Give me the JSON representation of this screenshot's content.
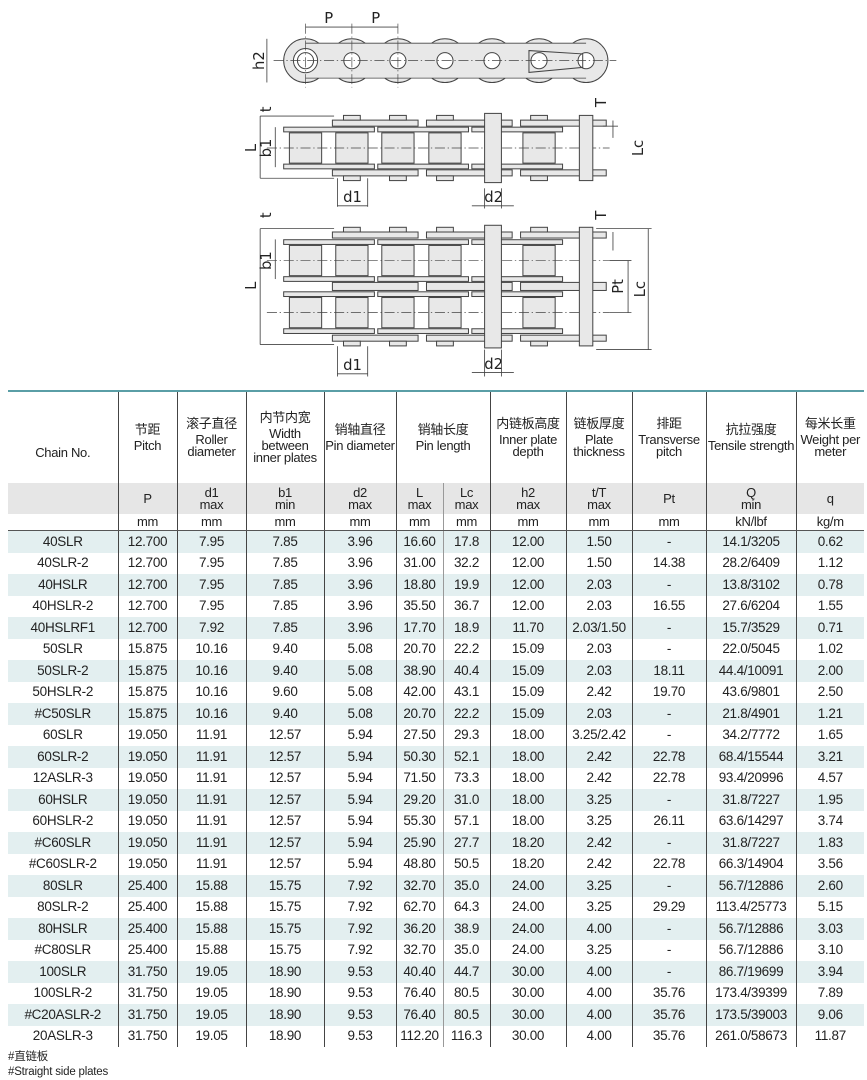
{
  "diagram": {
    "labels": {
      "P": "P",
      "h2": "h2",
      "t": "t",
      "T": "T",
      "L": "L",
      "b1": "b1",
      "Lc": "Lc",
      "d1": "d1",
      "d2": "d2",
      "Pt": "Pt"
    },
    "plate_fill": "#e8e8e8",
    "line_color": "#444444"
  },
  "table": {
    "chain_no_header": "Chain No.",
    "columns": [
      {
        "cn": "节距",
        "en": "Pitch",
        "sym": "P",
        "sub": "",
        "unit": "mm"
      },
      {
        "cn": "滚子直径",
        "en": "Roller diameter",
        "sym": "d1",
        "sub": "max",
        "unit": "mm"
      },
      {
        "cn": "内节内宽",
        "en": "Width between inner plates",
        "sym": "b1",
        "sub": "min",
        "unit": "mm"
      },
      {
        "cn": "销轴直径",
        "en": "Pin diameter",
        "sym": "d2",
        "sub": "max",
        "unit": "mm"
      },
      {
        "cn": "销轴长度",
        "en": "Pin length",
        "sym": "L",
        "sub": "max",
        "unit": "mm",
        "sym2": "Lc",
        "sub2": "max",
        "unit2": "mm"
      },
      {
        "cn": "内链板高度",
        "en": "Inner plate depth",
        "sym": "h2",
        "sub": "max",
        "unit": "mm"
      },
      {
        "cn": "链板厚度",
        "en": "Plate thickness",
        "sym": "t/T",
        "sub": "max",
        "unit": "mm"
      },
      {
        "cn": "排距",
        "en": "Transverse pitch",
        "sym": "Pt",
        "sub": "",
        "unit": "mm"
      },
      {
        "cn": "抗拉强度",
        "en": "Tensile strength",
        "sym": "Q",
        "sub": "min",
        "unit": "kN/lbf"
      },
      {
        "cn": "每米长重",
        "en": "Weight per meter",
        "sym": "q",
        "sub": "",
        "unit": "kg/m"
      }
    ],
    "rows": [
      [
        "40SLR",
        "12.700",
        "7.95",
        "7.85",
        "3.96",
        "16.60",
        "17.8",
        "12.00",
        "1.50",
        "-",
        "14.1/3205",
        "0.62"
      ],
      [
        "40SLR-2",
        "12.700",
        "7.95",
        "7.85",
        "3.96",
        "31.00",
        "32.2",
        "12.00",
        "1.50",
        "14.38",
        "28.2/6409",
        "1.12"
      ],
      [
        "40HSLR",
        "12.700",
        "7.95",
        "7.85",
        "3.96",
        "18.80",
        "19.9",
        "12.00",
        "2.03",
        "-",
        "13.8/3102",
        "0.78"
      ],
      [
        "40HSLR-2",
        "12.700",
        "7.95",
        "7.85",
        "3.96",
        "35.50",
        "36.7",
        "12.00",
        "2.03",
        "16.55",
        "27.6/6204",
        "1.55"
      ],
      [
        "40HSLRF1",
        "12.700",
        "7.92",
        "7.85",
        "3.96",
        "17.70",
        "18.9",
        "11.70",
        "2.03/1.50",
        "-",
        "15.7/3529",
        "0.71"
      ],
      [
        "50SLR",
        "15.875",
        "10.16",
        "9.40",
        "5.08",
        "20.70",
        "22.2",
        "15.09",
        "2.03",
        "-",
        "22.0/5045",
        "1.02"
      ],
      [
        "50SLR-2",
        "15.875",
        "10.16",
        "9.40",
        "5.08",
        "38.90",
        "40.4",
        "15.09",
        "2.03",
        "18.11",
        "44.4/10091",
        "2.00"
      ],
      [
        "50HSLR-2",
        "15.875",
        "10.16",
        "9.60",
        "5.08",
        "42.00",
        "43.1",
        "15.09",
        "2.42",
        "19.70",
        "43.6/9801",
        "2.50"
      ],
      [
        "#C50SLR",
        "15.875",
        "10.16",
        "9.40",
        "5.08",
        "20.70",
        "22.2",
        "15.09",
        "2.03",
        "-",
        "21.8/4901",
        "1.21"
      ],
      [
        "60SLR",
        "19.050",
        "11.91",
        "12.57",
        "5.94",
        "27.50",
        "29.3",
        "18.00",
        "3.25/2.42",
        "-",
        "34.2/7772",
        "1.65"
      ],
      [
        "60SLR-2",
        "19.050",
        "11.91",
        "12.57",
        "5.94",
        "50.30",
        "52.1",
        "18.00",
        "2.42",
        "22.78",
        "68.4/15544",
        "3.21"
      ],
      [
        "12ASLR-3",
        "19.050",
        "11.91",
        "12.57",
        "5.94",
        "71.50",
        "73.3",
        "18.00",
        "2.42",
        "22.78",
        "93.4/20996",
        "4.57"
      ],
      [
        "60HSLR",
        "19.050",
        "11.91",
        "12.57",
        "5.94",
        "29.20",
        "31.0",
        "18.00",
        "3.25",
        "-",
        "31.8/7227",
        "1.95"
      ],
      [
        "60HSLR-2",
        "19.050",
        "11.91",
        "12.57",
        "5.94",
        "55.30",
        "57.1",
        "18.00",
        "3.25",
        "26.11",
        "63.6/14297",
        "3.74"
      ],
      [
        "#C60SLR",
        "19.050",
        "11.91",
        "12.57",
        "5.94",
        "25.90",
        "27.7",
        "18.20",
        "2.42",
        "-",
        "31.8/7227",
        "1.83"
      ],
      [
        "#C60SLR-2",
        "19.050",
        "11.91",
        "12.57",
        "5.94",
        "48.80",
        "50.5",
        "18.20",
        "2.42",
        "22.78",
        "66.3/14904",
        "3.56"
      ],
      [
        "80SLR",
        "25.400",
        "15.88",
        "15.75",
        "7.92",
        "32.70",
        "35.0",
        "24.00",
        "3.25",
        "-",
        "56.7/12886",
        "2.60"
      ],
      [
        "80SLR-2",
        "25.400",
        "15.88",
        "15.75",
        "7.92",
        "62.70",
        "64.3",
        "24.00",
        "3.25",
        "29.29",
        "113.4/25773",
        "5.15"
      ],
      [
        "80HSLR",
        "25.400",
        "15.88",
        "15.75",
        "7.92",
        "36.20",
        "38.9",
        "24.00",
        "4.00",
        "-",
        "56.7/12886",
        "3.03"
      ],
      [
        "#C80SLR",
        "25.400",
        "15.88",
        "15.75",
        "7.92",
        "32.70",
        "35.0",
        "24.00",
        "3.25",
        "-",
        "56.7/12886",
        "3.10"
      ],
      [
        "100SLR",
        "31.750",
        "19.05",
        "18.90",
        "9.53",
        "40.40",
        "44.7",
        "30.00",
        "4.00",
        "-",
        "86.7/19699",
        "3.94"
      ],
      [
        "100SLR-2",
        "31.750",
        "19.05",
        "18.90",
        "9.53",
        "76.40",
        "80.5",
        "30.00",
        "4.00",
        "35.76",
        "173.4/39399",
        "7.89"
      ],
      [
        "#C20ASLR-2",
        "31.750",
        "19.05",
        "18.90",
        "9.53",
        "76.40",
        "80.5",
        "30.00",
        "4.00",
        "35.76",
        "173.5/39003",
        "9.06"
      ],
      [
        "20ASLR-3",
        "31.750",
        "19.05",
        "18.90",
        "9.53",
        "112.20",
        "116.3",
        "30.00",
        "4.00",
        "35.76",
        "261.0/58673",
        "11.87"
      ]
    ],
    "row_alt_color": "#e3eff0",
    "header_gray": "#e6e6e6",
    "accent_line": "#5a9ea6"
  },
  "footnotes": [
    "#直链板",
    "#Straight side plates"
  ]
}
